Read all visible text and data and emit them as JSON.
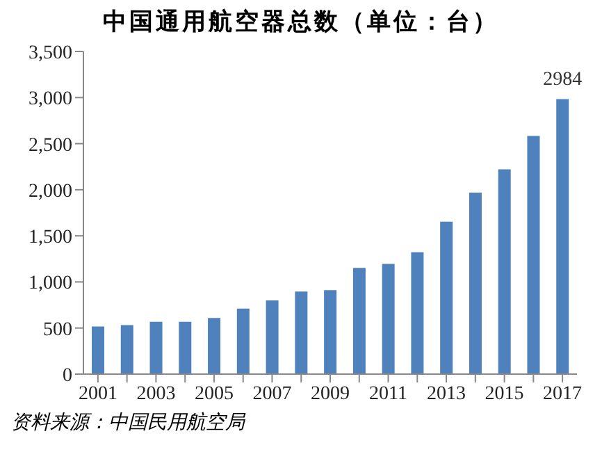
{
  "chart_data": {
    "type": "bar",
    "title": "中国通用航空器总数（单位：台）",
    "categories": [
      "2001",
      null,
      "2003",
      null,
      "2005",
      null,
      "2007",
      null,
      "2009",
      null,
      "2011",
      null,
      "2013",
      null,
      "2015",
      null,
      "2017"
    ],
    "values": [
      516,
      532,
      568,
      568,
      610,
      710,
      800,
      895,
      910,
      1153,
      1195,
      1321,
      1653,
      1968,
      2221,
      2584,
      2984
    ],
    "value_labels": [
      null,
      null,
      null,
      null,
      null,
      null,
      null,
      null,
      null,
      null,
      null,
      null,
      null,
      null,
      null,
      null,
      "2984"
    ],
    "color": "#4f81bd",
    "ylim": [
      0,
      3500
    ],
    "yticks": [
      0,
      500,
      {
        "value": 1000,
        "label": "1,000"
      },
      {
        "value": 1500,
        "label": "1,500"
      },
      {
        "value": 2000,
        "label": "2,000"
      },
      {
        "value": 2500,
        "label": "2,500"
      },
      {
        "value": 3000,
        "label": "3,000"
      },
      {
        "value": 3500,
        "label": "3,500"
      }
    ],
    "grid": false,
    "legend": false,
    "annotations": [
      "资料来源：中国民用航空局"
    ]
  }
}
